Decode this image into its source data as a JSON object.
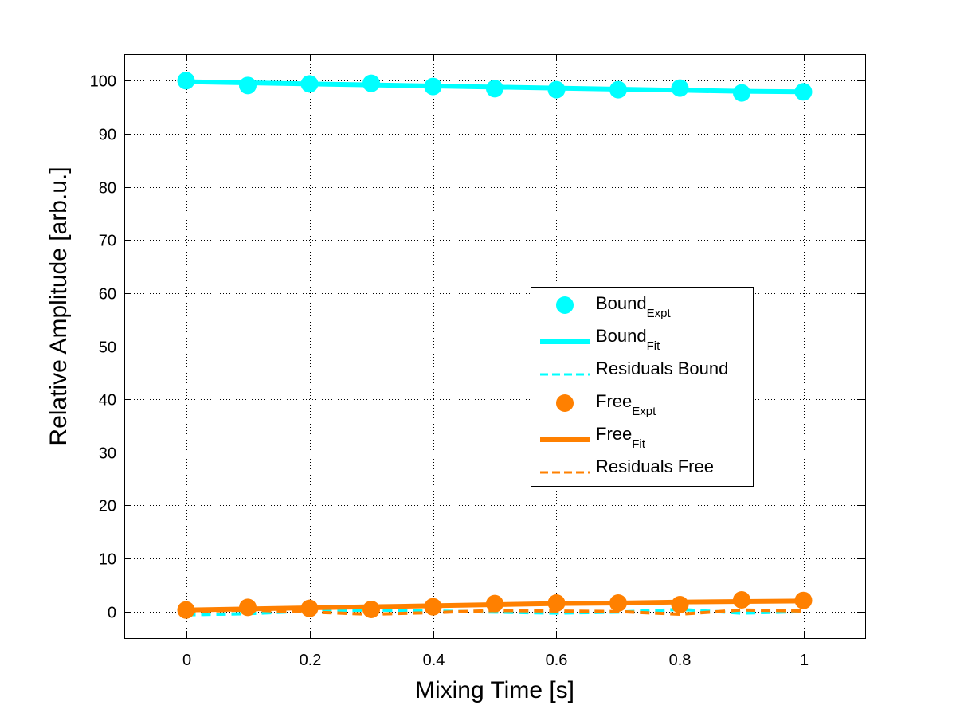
{
  "chart_data": {
    "type": "line",
    "title": "",
    "xlabel": "Mixing Time [s]",
    "ylabel": "Relative Amplitude [arb.u.]",
    "xlim": [
      -0.1,
      1.1
    ],
    "ylim": [
      -5,
      105
    ],
    "xticks": [
      0,
      0.2,
      0.4,
      0.6,
      0.8,
      1
    ],
    "xtick_labels": [
      "0",
      "0.2",
      "0.4",
      "0.6",
      "0.8",
      "1"
    ],
    "yticks": [
      0,
      10,
      20,
      30,
      40,
      50,
      60,
      70,
      80,
      90,
      100
    ],
    "ytick_labels": [
      "0",
      "10",
      "20",
      "30",
      "40",
      "50",
      "60",
      "70",
      "80",
      "90",
      "100"
    ],
    "grid": true,
    "legend_position": "center-right",
    "x": [
      0,
      0.1,
      0.2,
      0.3,
      0.4,
      0.5,
      0.6,
      0.7,
      0.8,
      0.9,
      1.0
    ],
    "series": [
      {
        "name": "Bound_Expt",
        "label_main": "Bound",
        "label_sub": "Expt",
        "style": "marker",
        "color": "#00FFFF",
        "values": [
          100.0,
          99.1,
          99.4,
          99.5,
          98.9,
          98.5,
          98.3,
          98.3,
          98.6,
          97.7,
          97.9
        ]
      },
      {
        "name": "Bound_Fit",
        "label_main": "Bound",
        "label_sub": "Fit",
        "style": "solid",
        "color": "#00FFFF",
        "values": [
          99.8,
          99.6,
          99.4,
          99.2,
          99.0,
          98.8,
          98.6,
          98.4,
          98.2,
          98.0,
          97.9
        ]
      },
      {
        "name": "Residuals Bound",
        "label_main": "Residuals Bound",
        "label_sub": "",
        "style": "dashed",
        "color": "#00FFFF",
        "values": [
          -0.6,
          -0.4,
          0.1,
          0.3,
          0.1,
          -0.1,
          -0.3,
          -0.1,
          0.4,
          -0.3,
          0.0
        ]
      },
      {
        "name": "Free_Expt",
        "label_main": "Free",
        "label_sub": "Expt",
        "style": "marker",
        "color": "#FF8000",
        "values": [
          0.3,
          0.8,
          0.6,
          0.4,
          0.9,
          1.5,
          1.6,
          1.6,
          1.3,
          2.2,
          2.1
        ]
      },
      {
        "name": "Free_Fit",
        "label_main": "Free",
        "label_sub": "Fit",
        "style": "solid",
        "color": "#FF8000",
        "values": [
          0.3,
          0.5,
          0.7,
          0.9,
          1.1,
          1.3,
          1.5,
          1.6,
          1.8,
          1.9,
          2.0
        ]
      },
      {
        "name": "Residuals Free",
        "label_main": "Residuals Free",
        "label_sub": "",
        "style": "dashed",
        "color": "#FF8000",
        "values": [
          0.0,
          0.3,
          -0.1,
          -0.5,
          -0.2,
          0.2,
          0.1,
          0.0,
          -0.5,
          0.3,
          0.1
        ]
      }
    ]
  }
}
